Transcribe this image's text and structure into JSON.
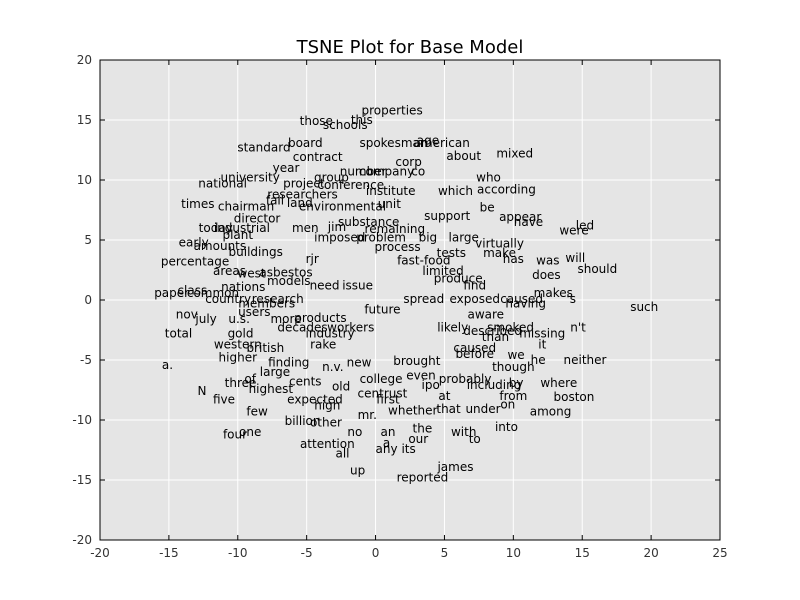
{
  "chart_data": {
    "type": "scatter",
    "title": "TSNE Plot for Base Model",
    "xlabel": "",
    "ylabel": "",
    "xlim": [
      -20,
      25
    ],
    "ylim": [
      -20,
      20
    ],
    "xticks": [
      -20,
      -15,
      -10,
      -5,
      0,
      5,
      10,
      15,
      20,
      25
    ],
    "yticks": [
      -20,
      -15,
      -10,
      -5,
      0,
      5,
      10,
      15,
      20
    ],
    "grid": true,
    "background": "#e5e5e5",
    "points": [
      {
        "label": "properties",
        "x": 1.2,
        "y": 15.8
      },
      {
        "label": "those",
        "x": -4.3,
        "y": 14.9
      },
      {
        "label": "this",
        "x": -1.0,
        "y": 15.0
      },
      {
        "label": "schools",
        "x": -2.2,
        "y": 14.6
      },
      {
        "label": "board",
        "x": -5.1,
        "y": 13.1
      },
      {
        "label": "standard",
        "x": -8.1,
        "y": 12.7
      },
      {
        "label": "spokesman",
        "x": 1.3,
        "y": 13.1
      },
      {
        "label": "age",
        "x": 3.8,
        "y": 13.3
      },
      {
        "label": "american",
        "x": 4.8,
        "y": 13.1
      },
      {
        "label": "about",
        "x": 6.4,
        "y": 12.0
      },
      {
        "label": "mixed",
        "x": 10.1,
        "y": 12.2
      },
      {
        "label": "contract",
        "x": -4.2,
        "y": 11.9
      },
      {
        "label": "year",
        "x": -6.5,
        "y": 11.0
      },
      {
        "label": "corp",
        "x": 2.4,
        "y": 11.5
      },
      {
        "label": "number",
        "x": -0.9,
        "y": 10.7
      },
      {
        "label": "company",
        "x": 0.8,
        "y": 10.7
      },
      {
        "label": "co",
        "x": 3.1,
        "y": 10.7
      },
      {
        "label": "who",
        "x": 8.2,
        "y": 10.2
      },
      {
        "label": "university",
        "x": -9.1,
        "y": 10.2
      },
      {
        "label": "national",
        "x": -11.1,
        "y": 9.7
      },
      {
        "label": "project",
        "x": -5.2,
        "y": 9.7
      },
      {
        "label": "group",
        "x": -3.2,
        "y": 10.2
      },
      {
        "label": "researchers",
        "x": -5.3,
        "y": 8.8
      },
      {
        "label": "conference",
        "x": -1.8,
        "y": 9.6
      },
      {
        "label": "institute",
        "x": 1.1,
        "y": 9.1
      },
      {
        "label": "which",
        "x": 5.8,
        "y": 9.1
      },
      {
        "label": "according",
        "x": 9.5,
        "y": 9.2
      },
      {
        "label": "times",
        "x": -12.9,
        "y": 8.0
      },
      {
        "label": "chairman",
        "x": -9.4,
        "y": 7.8
      },
      {
        "label": "fall",
        "x": -7.3,
        "y": 8.3
      },
      {
        "label": "land",
        "x": -5.5,
        "y": 8.1
      },
      {
        "label": "environmental",
        "x": -2.4,
        "y": 7.8
      },
      {
        "label": "unit",
        "x": 1.0,
        "y": 8.0
      },
      {
        "label": "be",
        "x": 8.1,
        "y": 7.7
      },
      {
        "label": "director",
        "x": -8.6,
        "y": 6.8
      },
      {
        "label": "substance",
        "x": -0.5,
        "y": 6.5
      },
      {
        "label": "support",
        "x": 5.2,
        "y": 7.0
      },
      {
        "label": "appear",
        "x": 10.5,
        "y": 6.9
      },
      {
        "label": "have",
        "x": 11.1,
        "y": 6.5
      },
      {
        "label": "led",
        "x": 15.2,
        "y": 6.2
      },
      {
        "label": "today",
        "x": -11.6,
        "y": 6.0
      },
      {
        "label": "industrial",
        "x": -9.7,
        "y": 6.0
      },
      {
        "label": "men",
        "x": -5.1,
        "y": 6.0
      },
      {
        "label": "jim",
        "x": -2.8,
        "y": 6.1
      },
      {
        "label": "remaining",
        "x": 1.4,
        "y": 5.9
      },
      {
        "label": "were",
        "x": 14.4,
        "y": 5.8
      },
      {
        "label": "plant",
        "x": -10.0,
        "y": 5.4
      },
      {
        "label": "imposed",
        "x": -2.6,
        "y": 5.2
      },
      {
        "label": "problem",
        "x": 0.4,
        "y": 5.2
      },
      {
        "label": "big",
        "x": 3.8,
        "y": 5.2
      },
      {
        "label": "large",
        "x": 6.4,
        "y": 5.2
      },
      {
        "label": "early",
        "x": -13.2,
        "y": 4.8
      },
      {
        "label": "amounts",
        "x": -11.3,
        "y": 4.5
      },
      {
        "label": "virtually",
        "x": 9.0,
        "y": 4.7
      },
      {
        "label": "process",
        "x": 1.6,
        "y": 4.4
      },
      {
        "label": "buildings",
        "x": -8.7,
        "y": 4.0
      },
      {
        "label": "tests",
        "x": 5.5,
        "y": 3.9
      },
      {
        "label": "make",
        "x": 9.0,
        "y": 3.9
      },
      {
        "label": "will",
        "x": 14.5,
        "y": 3.5
      },
      {
        "label": "percentage",
        "x": -13.1,
        "y": 3.2
      },
      {
        "label": "rjr",
        "x": -4.6,
        "y": 3.4
      },
      {
        "label": "fast-food",
        "x": 3.5,
        "y": 3.3
      },
      {
        "label": "has",
        "x": 10.0,
        "y": 3.4
      },
      {
        "label": "was",
        "x": 12.5,
        "y": 3.3
      },
      {
        "label": "should",
        "x": 16.1,
        "y": 2.6
      },
      {
        "label": "areas",
        "x": -10.6,
        "y": 2.4
      },
      {
        "label": "west",
        "x": -9.0,
        "y": 2.2
      },
      {
        "label": "asbestos",
        "x": -6.5,
        "y": 2.3
      },
      {
        "label": "limited",
        "x": 4.9,
        "y": 2.4
      },
      {
        "label": "does",
        "x": 12.4,
        "y": 2.1
      },
      {
        "label": "nations",
        "x": -9.6,
        "y": 1.1
      },
      {
        "label": "models",
        "x": -6.3,
        "y": 1.6
      },
      {
        "label": "need",
        "x": -3.7,
        "y": 1.2
      },
      {
        "label": "issue",
        "x": -1.3,
        "y": 1.2
      },
      {
        "label": "produce",
        "x": 6.0,
        "y": 1.8
      },
      {
        "label": "find",
        "x": 7.2,
        "y": 1.2
      },
      {
        "label": "paper",
        "x": -14.8,
        "y": 0.6
      },
      {
        "label": "class",
        "x": -13.3,
        "y": 0.8
      },
      {
        "label": "common",
        "x": -11.8,
        "y": 0.6
      },
      {
        "label": "makes",
        "x": 12.9,
        "y": 0.6
      },
      {
        "label": "country",
        "x": -10.7,
        "y": 0.1
      },
      {
        "label": "research",
        "x": -7.1,
        "y": 0.1
      },
      {
        "label": "spread",
        "x": 3.5,
        "y": 0.1
      },
      {
        "label": "exposed",
        "x": 7.2,
        "y": 0.1
      },
      {
        "label": "caused",
        "x": 10.6,
        "y": 0.1
      },
      {
        "label": "'s",
        "x": 14.2,
        "y": 0.1
      },
      {
        "label": "such",
        "x": 19.5,
        "y": -0.6
      },
      {
        "label": "members",
        "x": -7.9,
        "y": -0.3
      },
      {
        "label": "having",
        "x": 10.9,
        "y": -0.3
      },
      {
        "label": "nov",
        "x": -13.7,
        "y": -1.2
      },
      {
        "label": "users",
        "x": -8.8,
        "y": -1.0
      },
      {
        "label": "future",
        "x": 0.5,
        "y": -0.8
      },
      {
        "label": "aware",
        "x": 8.0,
        "y": -1.2
      },
      {
        "label": "july",
        "x": -12.3,
        "y": -1.6
      },
      {
        "label": "u.s.",
        "x": -9.9,
        "y": -1.6
      },
      {
        "label": "more",
        "x": -6.5,
        "y": -1.6
      },
      {
        "label": "products",
        "x": -4.0,
        "y": -1.5
      },
      {
        "label": "decades",
        "x": -5.3,
        "y": -2.3
      },
      {
        "label": "workers",
        "x": -1.8,
        "y": -2.3
      },
      {
        "label": "likely",
        "x": 5.6,
        "y": -2.3
      },
      {
        "label": "smoked",
        "x": 9.8,
        "y": -2.3
      },
      {
        "label": "n't",
        "x": 14.7,
        "y": -2.3
      },
      {
        "label": "total",
        "x": -14.3,
        "y": -2.8
      },
      {
        "label": "gold",
        "x": -9.8,
        "y": -2.8
      },
      {
        "label": "industry",
        "x": -3.3,
        "y": -2.8
      },
      {
        "label": "described",
        "x": 8.5,
        "y": -2.6
      },
      {
        "label": "missing",
        "x": 12.1,
        "y": -2.8
      },
      {
        "label": "than",
        "x": 8.7,
        "y": -3.1
      },
      {
        "label": "western",
        "x": -10.0,
        "y": -3.7
      },
      {
        "label": "british",
        "x": -8.0,
        "y": -4.0
      },
      {
        "label": "rake",
        "x": -3.8,
        "y": -3.7
      },
      {
        "label": "caused",
        "x": 7.2,
        "y": -4.0
      },
      {
        "label": "it",
        "x": 12.1,
        "y": -3.7
      },
      {
        "label": "higher",
        "x": -10.0,
        "y": -4.8
      },
      {
        "label": "finding",
        "x": -6.3,
        "y": -5.2
      },
      {
        "label": "new",
        "x": -1.2,
        "y": -5.2
      },
      {
        "label": "before",
        "x": 7.2,
        "y": -4.5
      },
      {
        "label": "we",
        "x": 10.2,
        "y": -4.6
      },
      {
        "label": "he",
        "x": 11.8,
        "y": -5.0
      },
      {
        "label": "neither",
        "x": 15.2,
        "y": -5.0
      },
      {
        "label": "a.",
        "x": -15.1,
        "y": -5.4
      },
      {
        "label": "n.v.",
        "x": -3.1,
        "y": -5.6
      },
      {
        "label": "brought",
        "x": 3.0,
        "y": -5.1
      },
      {
        "label": "though",
        "x": 10.0,
        "y": -5.6
      },
      {
        "label": "large",
        "x": -7.3,
        "y": -6.0
      },
      {
        "label": "college",
        "x": 0.4,
        "y": -6.6
      },
      {
        "label": "even",
        "x": 3.3,
        "y": -6.3
      },
      {
        "label": "probably",
        "x": 6.5,
        "y": -6.6
      },
      {
        "label": "by",
        "x": 10.2,
        "y": -6.9
      },
      {
        "label": "where",
        "x": 13.3,
        "y": -6.9
      },
      {
        "label": "three",
        "x": -9.8,
        "y": -6.9
      },
      {
        "label": "of",
        "x": -9.1,
        "y": -6.6
      },
      {
        "label": "cents",
        "x": -5.1,
        "y": -6.8
      },
      {
        "label": "old",
        "x": -2.5,
        "y": -7.2
      },
      {
        "label": "highest",
        "x": -7.6,
        "y": -7.4
      },
      {
        "label": "N",
        "x": -12.6,
        "y": -7.6
      },
      {
        "label": "expected",
        "x": -4.4,
        "y": -8.3
      },
      {
        "label": "centrust",
        "x": 0.5,
        "y": -7.8
      },
      {
        "label": "ipo",
        "x": 4.0,
        "y": -7.1
      },
      {
        "label": "including",
        "x": 8.6,
        "y": -7.1
      },
      {
        "label": "at",
        "x": 5.0,
        "y": -8.0
      },
      {
        "label": "five",
        "x": -11.0,
        "y": -8.3
      },
      {
        "label": "from",
        "x": 10.0,
        "y": -8.0
      },
      {
        "label": "boston",
        "x": 14.4,
        "y": -8.1
      },
      {
        "label": "first",
        "x": 0.9,
        "y": -8.3
      },
      {
        "label": "high",
        "x": -3.5,
        "y": -8.8
      },
      {
        "label": "few",
        "x": -8.6,
        "y": -9.3
      },
      {
        "label": "mr.",
        "x": -0.6,
        "y": -9.6
      },
      {
        "label": "whether",
        "x": 2.7,
        "y": -9.2
      },
      {
        "label": "that",
        "x": 5.3,
        "y": -9.1
      },
      {
        "label": "under",
        "x": 7.8,
        "y": -9.1
      },
      {
        "label": "on",
        "x": 9.6,
        "y": -8.7
      },
      {
        "label": "among",
        "x": 12.7,
        "y": -9.3
      },
      {
        "label": "billion",
        "x": -5.3,
        "y": -10.1
      },
      {
        "label": "other",
        "x": -3.6,
        "y": -10.2
      },
      {
        "label": "into",
        "x": 9.5,
        "y": -10.6
      },
      {
        "label": "four",
        "x": -10.2,
        "y": -11.2
      },
      {
        "label": "one",
        "x": -9.1,
        "y": -11.0
      },
      {
        "label": "no",
        "x": -1.5,
        "y": -11.0
      },
      {
        "label": "an",
        "x": 0.9,
        "y": -11.0
      },
      {
        "label": "the",
        "x": 3.4,
        "y": -10.7
      },
      {
        "label": "with",
        "x": 6.4,
        "y": -11.0
      },
      {
        "label": "our",
        "x": 3.1,
        "y": -11.6
      },
      {
        "label": "to",
        "x": 7.2,
        "y": -11.6
      },
      {
        "label": "attention",
        "x": -3.5,
        "y": -12.0
      },
      {
        "label": "a",
        "x": 0.8,
        "y": -11.9
      },
      {
        "label": "any",
        "x": 0.8,
        "y": -12.4
      },
      {
        "label": "its",
        "x": 2.4,
        "y": -12.4
      },
      {
        "label": "all",
        "x": -2.4,
        "y": -12.8
      },
      {
        "label": "james",
        "x": 5.8,
        "y": -13.9
      },
      {
        "label": "up",
        "x": -1.3,
        "y": -14.2
      },
      {
        "label": "reported",
        "x": 3.4,
        "y": -14.8
      }
    ]
  }
}
